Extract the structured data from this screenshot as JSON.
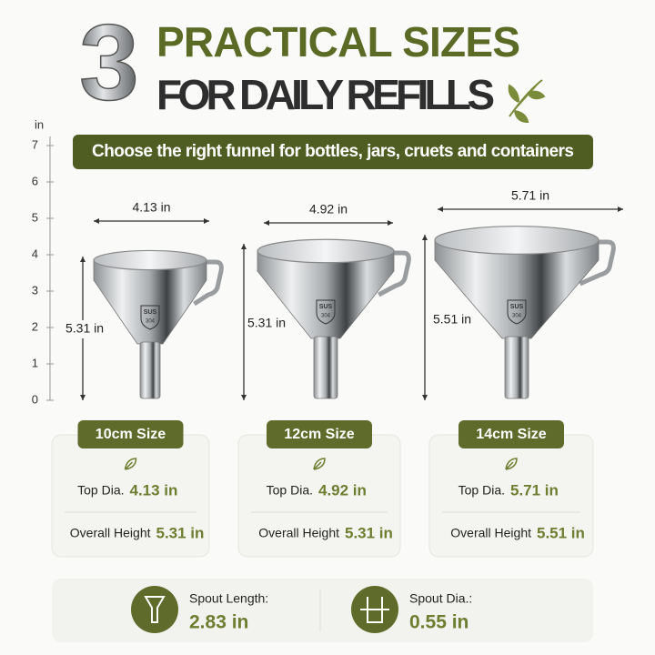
{
  "header": {
    "number": "3",
    "line1": "PRACTICAL SIZES",
    "line2": "FOR DAILY REFILLS"
  },
  "banner": "Choose the right funnel for bottles, jars, cruets and containers",
  "ruler": {
    "unit": "in",
    "ticks": [
      0,
      1,
      2,
      3,
      4,
      5,
      6,
      7
    ]
  },
  "funnels": [
    {
      "width_label": "4.13 in",
      "height_label": "5.31 in",
      "badge_top": "SUS",
      "badge_bottom": "304"
    },
    {
      "width_label": "4.92 in",
      "height_label": "5.31 in",
      "badge_top": "SUS",
      "badge_bottom": "304"
    },
    {
      "width_label": "5.71 in",
      "height_label": "5.51 in",
      "badge_top": "SUS",
      "badge_bottom": "304"
    }
  ],
  "cards": [
    {
      "size": "10cm Size",
      "top_dia_label": "Top Dia.",
      "top_dia": "4.13 in",
      "height_label": "Overall Height",
      "height": "5.31 in"
    },
    {
      "size": "12cm Size",
      "top_dia_label": "Top Dia.",
      "top_dia": "4.92 in",
      "height_label": "Overall Height",
      "height": "5.31 in"
    },
    {
      "size": "14cm Size",
      "top_dia_label": "Top Dia.",
      "top_dia": "5.71 in",
      "height_label": "Overall Height",
      "height": "5.51 in"
    }
  ],
  "spout": [
    {
      "label": "Spout Length:",
      "value": "2.83 in"
    },
    {
      "label": "Spout Dia.:",
      "value": "0.55 in"
    }
  ]
}
